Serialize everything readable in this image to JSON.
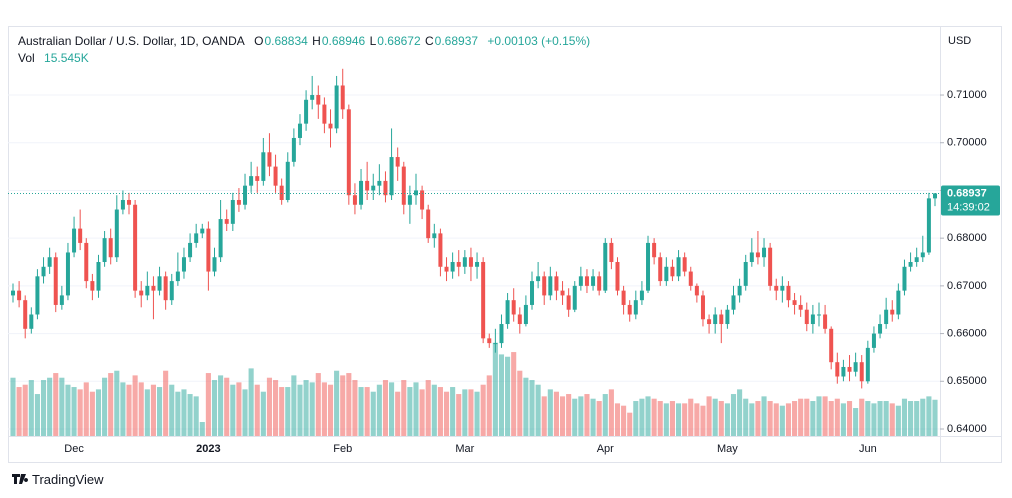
{
  "chart_data": {
    "type": "candlestick",
    "title": "Australian Dollar / U.S. Dollar, 1D, OANDA",
    "ohlc_labels": [
      "O",
      "H",
      "L",
      "C"
    ],
    "change_label": "+0.00103 (+0.15%)",
    "volume_name": "Vol",
    "volume_label": "15.545K",
    "currency": "USD",
    "countdown": "14:39:02",
    "up_color": "#26a69a",
    "down_color": "#ef5350",
    "grid": true,
    "ylim": [
      0.63853,
      0.72405
    ],
    "yticks": [
      {
        "value": 0.64,
        "label": "0.64000"
      },
      {
        "value": 0.65,
        "label": "0.65000"
      },
      {
        "value": 0.66,
        "label": "0.66000"
      },
      {
        "value": 0.67,
        "label": "0.67000"
      },
      {
        "value": 0.68,
        "label": "0.68000"
      },
      {
        "value": 0.69,
        "label": "0.69000"
      },
      {
        "value": 0.7,
        "label": "0.70000"
      },
      {
        "value": 0.71,
        "label": "0.71000"
      }
    ],
    "volume_ylim": [
      0,
      175
    ],
    "categories": [
      null,
      null,
      null,
      null,
      null,
      null,
      null,
      null,
      null,
      null,
      "Dec",
      null,
      null,
      null,
      null,
      null,
      null,
      null,
      null,
      null,
      null,
      null,
      null,
      null,
      null,
      null,
      null,
      null,
      null,
      null,
      null,
      null,
      "2023",
      null,
      null,
      null,
      null,
      null,
      null,
      null,
      null,
      null,
      null,
      null,
      null,
      null,
      null,
      null,
      null,
      null,
      null,
      null,
      null,
      null,
      "Feb",
      null,
      null,
      null,
      null,
      null,
      null,
      null,
      null,
      null,
      null,
      null,
      null,
      null,
      null,
      null,
      null,
      null,
      null,
      null,
      "Mar",
      null,
      null,
      null,
      null,
      null,
      null,
      null,
      null,
      null,
      null,
      null,
      null,
      null,
      null,
      null,
      null,
      null,
      null,
      null,
      null,
      null,
      null,
      "Apr",
      null,
      null,
      null,
      null,
      null,
      null,
      null,
      null,
      null,
      null,
      null,
      null,
      null,
      null,
      null,
      null,
      null,
      null,
      null,
      "May",
      null,
      null,
      null,
      null,
      null,
      null,
      null,
      null,
      null,
      null,
      null,
      null,
      null,
      null,
      null,
      null,
      null,
      null,
      null,
      null,
      null,
      null,
      "Jun",
      null,
      null,
      null,
      null,
      null,
      null,
      null,
      null,
      null,
      null,
      null
    ],
    "open": [
      0.668,
      0.669,
      0.667,
      0.661,
      0.664,
      0.672,
      0.674,
      0.676,
      0.666,
      0.668,
      0.677,
      0.682,
      0.679,
      0.671,
      0.669,
      0.675,
      0.68,
      0.676,
      0.686,
      0.688,
      0.687,
      0.669,
      0.668,
      0.67,
      0.669,
      0.672,
      0.667,
      0.671,
      0.673,
      0.676,
      0.679,
      0.681,
      0.682,
      0.673,
      0.676,
      0.684,
      0.683,
      0.688,
      0.687,
      0.691,
      0.693,
      0.692,
      0.698,
      0.695,
      0.691,
      0.688,
      0.696,
      0.701,
      0.704,
      0.709,
      0.71,
      0.708,
      0.704,
      0.703,
      0.712,
      0.707,
      0.689,
      0.687,
      0.692,
      0.69,
      0.691,
      0.692,
      0.689,
      0.697,
      0.695,
      0.687,
      0.689,
      0.69,
      0.686,
      0.68,
      0.681,
      0.674,
      0.673,
      0.675,
      0.674,
      0.676,
      0.674,
      0.675,
      0.659,
      0.658,
      0.658,
      0.662,
      0.667,
      0.664,
      0.662,
      0.666,
      0.671,
      0.672,
      0.668,
      0.672,
      0.669,
      0.668,
      0.665,
      0.67,
      0.672,
      0.67,
      0.672,
      0.669,
      0.679,
      0.675,
      0.669,
      0.666,
      0.664,
      0.667,
      0.669,
      0.679,
      0.676,
      0.671,
      0.674,
      0.672,
      0.676,
      0.673,
      0.67,
      0.668,
      0.663,
      0.662,
      0.664,
      0.662,
      0.665,
      0.668,
      0.67,
      0.675,
      0.677,
      0.676,
      0.678,
      0.67,
      0.669,
      0.67,
      0.667,
      0.666,
      0.665,
      0.662,
      0.664,
      0.664,
      0.661,
      0.654,
      0.651,
      0.653,
      0.652,
      0.654,
      0.65,
      0.657,
      0.66,
      0.662,
      0.665,
      0.664,
      0.669,
      0.674,
      0.675,
      0.676,
      0.677,
      0.68834
    ],
    "high": [
      0.6705,
      0.671,
      0.668,
      0.6655,
      0.6735,
      0.676,
      0.678,
      0.677,
      0.67,
      0.679,
      0.6845,
      0.686,
      0.68,
      0.6725,
      0.6765,
      0.6815,
      0.682,
      0.689,
      0.69,
      0.6895,
      0.688,
      0.671,
      0.673,
      0.672,
      0.674,
      0.673,
      0.6725,
      0.677,
      0.678,
      0.681,
      0.683,
      0.683,
      0.6835,
      0.678,
      0.688,
      0.686,
      0.6895,
      0.6905,
      0.6935,
      0.696,
      0.695,
      0.701,
      0.702,
      0.6975,
      0.6925,
      0.698,
      0.703,
      0.706,
      0.711,
      0.714,
      0.712,
      0.7095,
      0.707,
      0.714,
      0.7155,
      0.708,
      0.6915,
      0.6945,
      0.696,
      0.6935,
      0.6955,
      0.694,
      0.703,
      0.699,
      0.696,
      0.691,
      0.6935,
      0.691,
      0.687,
      0.683,
      0.682,
      0.676,
      0.677,
      0.6775,
      0.6775,
      0.678,
      0.677,
      0.676,
      0.66,
      0.661,
      0.664,
      0.6685,
      0.6695,
      0.6655,
      0.668,
      0.673,
      0.675,
      0.673,
      0.674,
      0.673,
      0.671,
      0.6695,
      0.671,
      0.674,
      0.6735,
      0.6735,
      0.673,
      0.68,
      0.68,
      0.676,
      0.67,
      0.667,
      0.669,
      0.671,
      0.6805,
      0.68,
      0.677,
      0.676,
      0.6755,
      0.6775,
      0.677,
      0.674,
      0.6705,
      0.669,
      0.664,
      0.6655,
      0.665,
      0.666,
      0.67,
      0.6715,
      0.6765,
      0.68,
      0.6815,
      0.68,
      0.679,
      0.6715,
      0.672,
      0.671,
      0.6685,
      0.668,
      0.6665,
      0.666,
      0.6665,
      0.666,
      0.6615,
      0.656,
      0.6545,
      0.6555,
      0.656,
      0.6555,
      0.6585,
      0.6615,
      0.664,
      0.6675,
      0.667,
      0.6705,
      0.6755,
      0.677,
      0.678,
      0.6805,
      0.6895,
      0.68946
    ],
    "low": [
      0.6665,
      0.6655,
      0.659,
      0.66,
      0.663,
      0.6705,
      0.6725,
      0.6645,
      0.665,
      0.667,
      0.676,
      0.6775,
      0.6695,
      0.667,
      0.6675,
      0.674,
      0.6745,
      0.675,
      0.685,
      0.685,
      0.6675,
      0.6655,
      0.667,
      0.663,
      0.668,
      0.665,
      0.666,
      0.67,
      0.6715,
      0.675,
      0.678,
      0.68,
      0.669,
      0.672,
      0.675,
      0.6815,
      0.6815,
      0.6855,
      0.686,
      0.6895,
      0.6895,
      0.691,
      0.693,
      0.6895,
      0.687,
      0.6875,
      0.695,
      0.6995,
      0.7025,
      0.707,
      0.705,
      0.702,
      0.699,
      0.702,
      0.705,
      0.687,
      0.685,
      0.686,
      0.688,
      0.688,
      0.689,
      0.6875,
      0.688,
      0.692,
      0.685,
      0.683,
      0.687,
      0.684,
      0.679,
      0.678,
      0.672,
      0.671,
      0.6715,
      0.672,
      0.6725,
      0.671,
      0.6715,
      0.658,
      0.657,
      0.656,
      0.657,
      0.661,
      0.6625,
      0.66,
      0.6615,
      0.665,
      0.6695,
      0.666,
      0.667,
      0.667,
      0.666,
      0.6635,
      0.6645,
      0.669,
      0.6685,
      0.669,
      0.668,
      0.6685,
      0.6735,
      0.668,
      0.664,
      0.6625,
      0.663,
      0.666,
      0.6685,
      0.6745,
      0.67,
      0.67,
      0.671,
      0.671,
      0.672,
      0.669,
      0.6665,
      0.6615,
      0.66,
      0.66,
      0.658,
      0.661,
      0.664,
      0.6665,
      0.669,
      0.674,
      0.6745,
      0.674,
      0.669,
      0.667,
      0.6665,
      0.6655,
      0.664,
      0.6635,
      0.6605,
      0.66,
      0.6615,
      0.66,
      0.6525,
      0.6495,
      0.65,
      0.65,
      0.651,
      0.6485,
      0.6495,
      0.656,
      0.659,
      0.661,
      0.6625,
      0.663,
      0.668,
      0.673,
      0.674,
      0.675,
      0.6765,
      0.68672
    ],
    "close": [
      0.669,
      0.667,
      0.661,
      0.664,
      0.672,
      0.674,
      0.676,
      0.666,
      0.668,
      0.677,
      0.682,
      0.679,
      0.671,
      0.669,
      0.675,
      0.68,
      0.676,
      0.686,
      0.688,
      0.687,
      0.669,
      0.668,
      0.67,
      0.669,
      0.672,
      0.667,
      0.671,
      0.673,
      0.676,
      0.679,
      0.681,
      0.682,
      0.673,
      0.676,
      0.684,
      0.683,
      0.688,
      0.687,
      0.691,
      0.693,
      0.692,
      0.698,
      0.695,
      0.691,
      0.688,
      0.696,
      0.701,
      0.704,
      0.709,
      0.71,
      0.708,
      0.704,
      0.703,
      0.712,
      0.707,
      0.689,
      0.687,
      0.692,
      0.69,
      0.691,
      0.692,
      0.689,
      0.697,
      0.695,
      0.687,
      0.689,
      0.69,
      0.686,
      0.68,
      0.681,
      0.674,
      0.673,
      0.675,
      0.674,
      0.676,
      0.674,
      0.675,
      0.659,
      0.658,
      0.658,
      0.662,
      0.667,
      0.664,
      0.662,
      0.666,
      0.671,
      0.672,
      0.668,
      0.672,
      0.669,
      0.668,
      0.665,
      0.67,
      0.672,
      0.67,
      0.672,
      0.669,
      0.679,
      0.675,
      0.669,
      0.666,
      0.664,
      0.667,
      0.669,
      0.679,
      0.676,
      0.671,
      0.674,
      0.672,
      0.676,
      0.673,
      0.67,
      0.668,
      0.663,
      0.662,
      0.664,
      0.662,
      0.665,
      0.668,
      0.67,
      0.675,
      0.677,
      0.676,
      0.678,
      0.67,
      0.669,
      0.67,
      0.667,
      0.666,
      0.665,
      0.662,
      0.664,
      0.664,
      0.661,
      0.654,
      0.651,
      0.653,
      0.652,
      0.654,
      0.65,
      0.657,
      0.66,
      0.662,
      0.665,
      0.664,
      0.669,
      0.674,
      0.675,
      0.676,
      0.677,
      0.68834,
      0.68937
    ],
    "volume": [
      25,
      21,
      22,
      24,
      18,
      24,
      25,
      27,
      25,
      22,
      21,
      20,
      23,
      19,
      20,
      25,
      27,
      28,
      23,
      22,
      26,
      23,
      20,
      22,
      21,
      28,
      22,
      19,
      20,
      18,
      17,
      6,
      27,
      24,
      26,
      25,
      22,
      23,
      20,
      29,
      22,
      19,
      25,
      24,
      21,
      21,
      26,
      22,
      24,
      23,
      27,
      23,
      22,
      28,
      26,
      27,
      24,
      21,
      21,
      19,
      22,
      24,
      23,
      19,
      24,
      21,
      23,
      20,
      24,
      22,
      21,
      19,
      21,
      18,
      20,
      20,
      19,
      22,
      26,
      40,
      35,
      34,
      36,
      28,
      25,
      24,
      22,
      17,
      20,
      19,
      17,
      18,
      16,
      17,
      18,
      16,
      15,
      18,
      20,
      14,
      13,
      10,
      15,
      16,
      17,
      16,
      15,
      14,
      15,
      14,
      14,
      16,
      14,
      13,
      17,
      16,
      15,
      14,
      18,
      20,
      16,
      14,
      15,
      17,
      15,
      14,
      13,
      14,
      15,
      16,
      16,
      15,
      17,
      17,
      15,
      16,
      14,
      15,
      12,
      16,
      15,
      14,
      15,
      15,
      14,
      13,
      16,
      15,
      15,
      16,
      17,
      15.545
    ]
  },
  "brand": "TradingView"
}
